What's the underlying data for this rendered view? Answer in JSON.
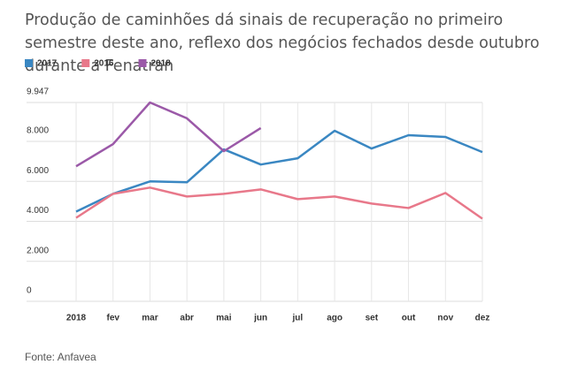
{
  "chart_data": {
    "type": "line",
    "title": "Produção de caminhões dá sinais de recuperação no primeiro semestre deste ano, reflexo dos negócios fechados desde outubro durante a Fenatran",
    "source": "Fonte: Anfavea",
    "categories": [
      "2018",
      "fev",
      "mar",
      "abr",
      "mai",
      "jun",
      "jul",
      "ago",
      "set",
      "out",
      "nov",
      "dez"
    ],
    "series": [
      {
        "name": "2017",
        "color": "#3a87c2",
        "values": [
          4489,
          5378,
          6000,
          5956,
          7600,
          6844,
          7156,
          8533,
          7644,
          8311,
          8222,
          7467
        ]
      },
      {
        "name": "2016",
        "color": "#e8788a",
        "values": [
          4178,
          5378,
          5689,
          5244,
          5378,
          5600,
          5111,
          5244,
          4889,
          4667,
          5422,
          4133
        ]
      },
      {
        "name": "2018",
        "color": "#9b59a8",
        "values": [
          6756,
          7867,
          9947,
          9156,
          7511,
          8667,
          null,
          null,
          null,
          null,
          null,
          null
        ]
      }
    ],
    "ylim": [
      0,
      9947
    ],
    "yticks": [
      0,
      {
        "value": 2000,
        "label": "2.000"
      },
      {
        "value": 4000,
        "label": "4.000"
      },
      {
        "value": 6000,
        "label": "6.000"
      },
      {
        "value": 8000,
        "label": "8.000"
      },
      {
        "value": 9947,
        "label": "9.947"
      }
    ],
    "grid": true
  }
}
